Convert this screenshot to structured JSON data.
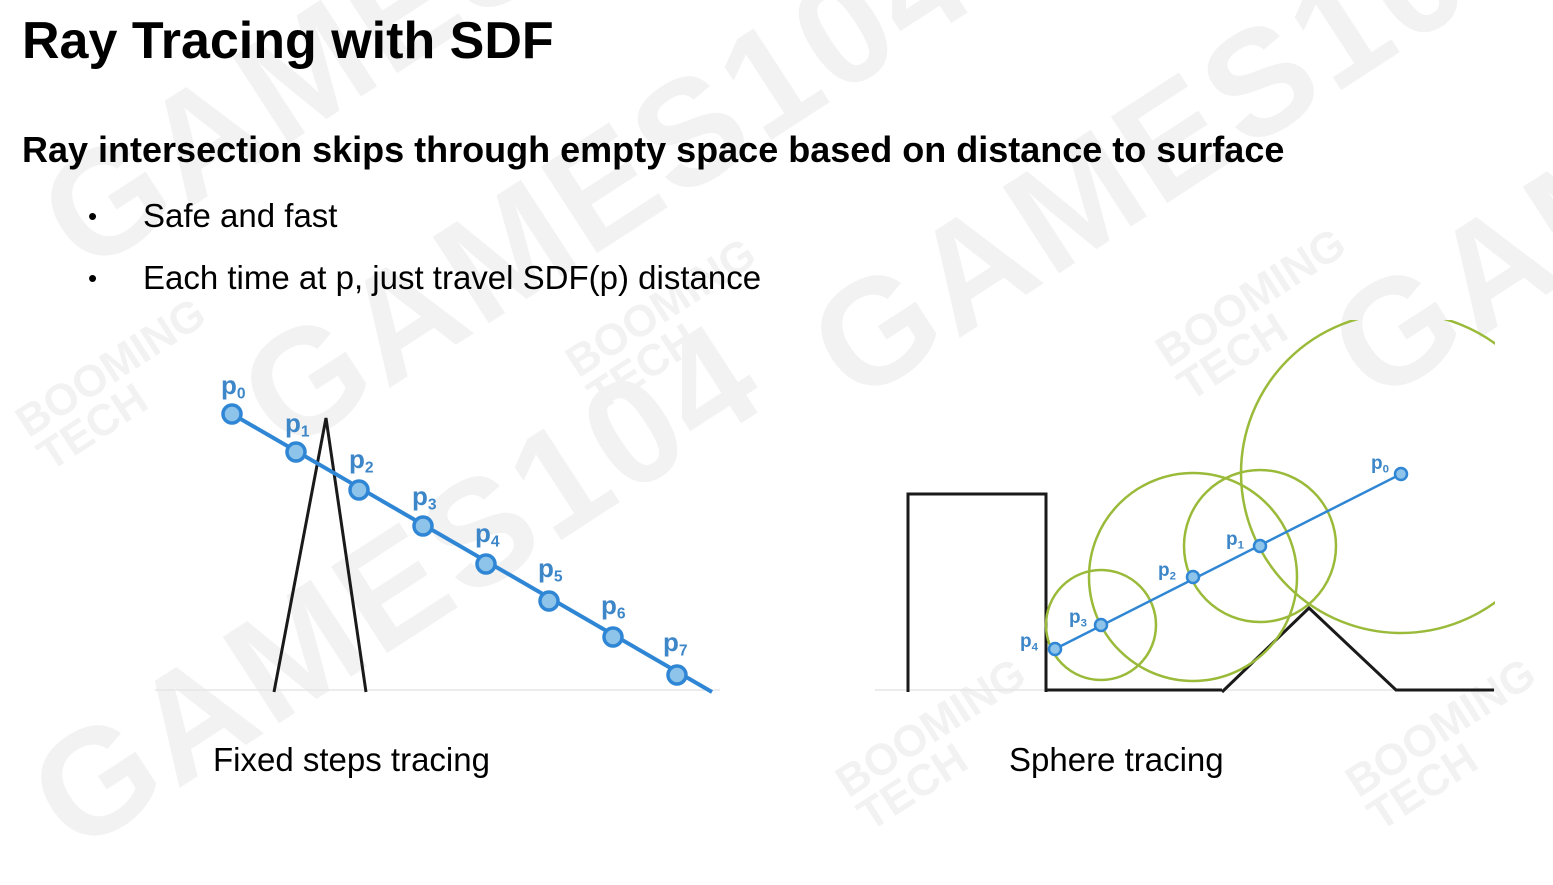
{
  "slide": {
    "title": "Ray Tracing with SDF",
    "subtitle": "Ray intersection skips through empty space based on distance to surface",
    "bullets": [
      "Safe and fast",
      "Each time at p, just travel SDF(p) distance"
    ],
    "bullet_marker": "•"
  },
  "watermark": {
    "brand": "GAMES104",
    "sub_line1": "BOOMING",
    "sub_line2": "TECH"
  },
  "diagram_left": {
    "caption": "Fixed steps tracing",
    "points": [
      {
        "label": "p",
        "sub": "0"
      },
      {
        "label": "p",
        "sub": "1"
      },
      {
        "label": "p",
        "sub": "2"
      },
      {
        "label": "p",
        "sub": "3"
      },
      {
        "label": "p",
        "sub": "4"
      },
      {
        "label": "p",
        "sub": "5"
      },
      {
        "label": "p",
        "sub": "6"
      },
      {
        "label": "p",
        "sub": "7"
      }
    ]
  },
  "diagram_right": {
    "caption": "Sphere tracing",
    "points": [
      {
        "label": "p",
        "sub": "0"
      },
      {
        "label": "p",
        "sub": "1"
      },
      {
        "label": "p",
        "sub": "2"
      },
      {
        "label": "p",
        "sub": "3"
      },
      {
        "label": "p",
        "sub": "4"
      }
    ]
  },
  "colors": {
    "ray": "#2f86d4",
    "point_fill": "#8ec3ea",
    "point_label": "#3d86c8",
    "sphere": "#9aba3a",
    "geometry": "#1a1a1a"
  }
}
